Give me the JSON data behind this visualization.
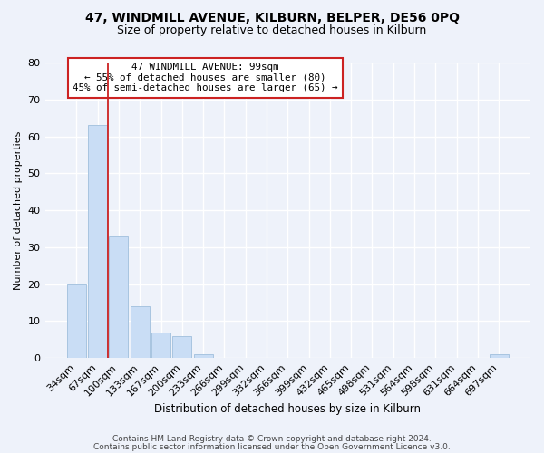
{
  "title": "47, WINDMILL AVENUE, KILBURN, BELPER, DE56 0PQ",
  "subtitle": "Size of property relative to detached houses in Kilburn",
  "xlabel": "Distribution of detached houses by size in Kilburn",
  "ylabel": "Number of detached properties",
  "bar_labels": [
    "34sqm",
    "67sqm",
    "100sqm",
    "133sqm",
    "167sqm",
    "200sqm",
    "233sqm",
    "266sqm",
    "299sqm",
    "332sqm",
    "366sqm",
    "399sqm",
    "432sqm",
    "465sqm",
    "498sqm",
    "531sqm",
    "564sqm",
    "598sqm",
    "631sqm",
    "664sqm",
    "697sqm"
  ],
  "bar_values": [
    20,
    63,
    33,
    14,
    7,
    6,
    1,
    0,
    0,
    0,
    0,
    0,
    0,
    0,
    0,
    0,
    0,
    0,
    0,
    0,
    1
  ],
  "bar_color": "#c9ddf5",
  "bar_edge_color": "#a8c4e0",
  "annotation_title": "47 WINDMILL AVENUE: 99sqm",
  "annotation_line1": "← 55% of detached houses are smaller (80)",
  "annotation_line2": "45% of semi-detached houses are larger (65) →",
  "annotation_box_facecolor": "#ffffff",
  "annotation_box_edgecolor": "#cc2222",
  "vline_color": "#cc2222",
  "ylim": [
    0,
    80
  ],
  "yticks": [
    0,
    10,
    20,
    30,
    40,
    50,
    60,
    70,
    80
  ],
  "footer1": "Contains HM Land Registry data © Crown copyright and database right 2024.",
  "footer2": "Contains public sector information licensed under the Open Government Licence v3.0.",
  "bg_color": "#eef2fa",
  "plot_bg_color": "#eef2fa",
  "grid_color": "#ffffff",
  "title_fontsize": 10,
  "subtitle_fontsize": 9,
  "xlabel_fontsize": 8.5,
  "ylabel_fontsize": 8,
  "tick_fontsize": 8,
  "annot_fontsize": 7.8,
  "footer_fontsize": 6.5
}
